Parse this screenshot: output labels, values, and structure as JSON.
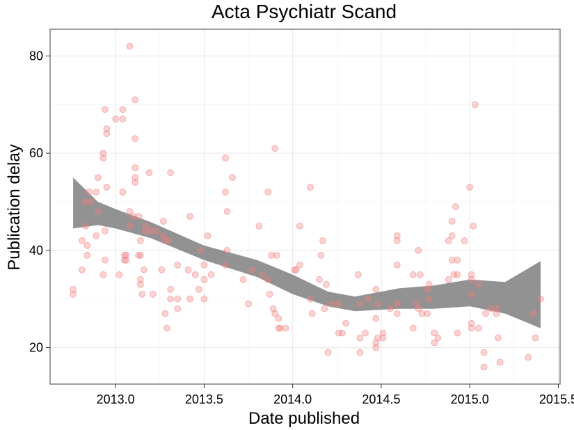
{
  "chart_data": {
    "type": "scatter",
    "title": "Acta Psychiatr Scand",
    "xlabel": "Date published",
    "ylabel": "Publication delay",
    "xlim": [
      2012.63,
      2015.51
    ],
    "ylim": [
      12.5,
      85.5
    ],
    "xticks": [
      2013.0,
      2013.5,
      2014.0,
      2014.5,
      2015.0,
      2015.5
    ],
    "xtick_labels": [
      "2013.0",
      "2013.5",
      "2014.0",
      "2014.5",
      "2015.0",
      "2015.5"
    ],
    "yticks": [
      20,
      40,
      60,
      80
    ],
    "ytick_labels": [
      "20",
      "40",
      "60",
      "80"
    ],
    "grid": true,
    "point_color": "#f08080",
    "band_color": "#7f7f7f",
    "points": [
      [
        2012.76,
        32
      ],
      [
        2012.76,
        31
      ],
      [
        2012.81,
        42
      ],
      [
        2012.81,
        36
      ],
      [
        2012.83,
        50
      ],
      [
        2012.83,
        45
      ],
      [
        2012.84,
        41
      ],
      [
        2012.84,
        39
      ],
      [
        2012.85,
        52
      ],
      [
        2012.86,
        50
      ],
      [
        2012.89,
        52
      ],
      [
        2012.89,
        43
      ],
      [
        2012.9,
        55
      ],
      [
        2012.9,
        48
      ],
      [
        2012.93,
        60
      ],
      [
        2012.93,
        59
      ],
      [
        2012.93,
        35
      ],
      [
        2012.94,
        69
      ],
      [
        2012.94,
        44
      ],
      [
        2012.94,
        38
      ],
      [
        2012.95,
        65
      ],
      [
        2012.95,
        64
      ],
      [
        2012.95,
        53
      ],
      [
        2013.0,
        67
      ],
      [
        2013.02,
        35
      ],
      [
        2013.04,
        69
      ],
      [
        2013.04,
        67
      ],
      [
        2013.04,
        52
      ],
      [
        2013.05,
        39
      ],
      [
        2013.05,
        38
      ],
      [
        2013.06,
        39
      ],
      [
        2013.06,
        38
      ],
      [
        2013.08,
        82
      ],
      [
        2013.08,
        48
      ],
      [
        2013.08,
        45
      ],
      [
        2013.1,
        47
      ],
      [
        2013.11,
        71
      ],
      [
        2013.11,
        63
      ],
      [
        2013.11,
        57
      ],
      [
        2013.11,
        55
      ],
      [
        2013.11,
        54
      ],
      [
        2013.13,
        47
      ],
      [
        2013.13,
        39
      ],
      [
        2013.14,
        42
      ],
      [
        2013.14,
        39
      ],
      [
        2013.14,
        34
      ],
      [
        2013.14,
        33
      ],
      [
        2013.15,
        31
      ],
      [
        2013.16,
        36
      ],
      [
        2013.17,
        45
      ],
      [
        2013.17,
        44
      ],
      [
        2013.19,
        56
      ],
      [
        2013.2,
        44
      ],
      [
        2013.21,
        31
      ],
      [
        2013.23,
        44
      ],
      [
        2013.26,
        36
      ],
      [
        2013.27,
        46
      ],
      [
        2013.27,
        43
      ],
      [
        2013.28,
        42
      ],
      [
        2013.28,
        27
      ],
      [
        2013.29,
        24
      ],
      [
        2013.3,
        42
      ],
      [
        2013.31,
        56
      ],
      [
        2013.31,
        32
      ],
      [
        2013.31,
        30
      ],
      [
        2013.35,
        37
      ],
      [
        2013.35,
        30
      ],
      [
        2013.35,
        28
      ],
      [
        2013.41,
        36
      ],
      [
        2013.42,
        47
      ],
      [
        2013.42,
        30
      ],
      [
        2013.45,
        35
      ],
      [
        2013.47,
        32
      ],
      [
        2013.48,
        40
      ],
      [
        2013.5,
        37
      ],
      [
        2013.5,
        34
      ],
      [
        2013.5,
        30
      ],
      [
        2013.52,
        43
      ],
      [
        2013.54,
        35
      ],
      [
        2013.62,
        59
      ],
      [
        2013.62,
        52
      ],
      [
        2013.62,
        37
      ],
      [
        2013.63,
        48
      ],
      [
        2013.63,
        40
      ],
      [
        2013.66,
        55
      ],
      [
        2013.72,
        34
      ],
      [
        2013.75,
        29
      ],
      [
        2013.77,
        36
      ],
      [
        2013.81,
        45
      ],
      [
        2013.83,
        35
      ],
      [
        2013.86,
        52
      ],
      [
        2013.86,
        34
      ],
      [
        2013.87,
        31
      ],
      [
        2013.88,
        39
      ],
      [
        2013.89,
        28
      ],
      [
        2013.9,
        61
      ],
      [
        2013.9,
        27
      ],
      [
        2013.91,
        39
      ],
      [
        2013.92,
        26
      ],
      [
        2013.92,
        24
      ],
      [
        2013.93,
        24
      ],
      [
        2013.96,
        24
      ],
      [
        2014.01,
        36
      ],
      [
        2014.02,
        36
      ],
      [
        2014.04,
        45
      ],
      [
        2014.04,
        37
      ],
      [
        2014.1,
        53
      ],
      [
        2014.1,
        30
      ],
      [
        2014.11,
        27
      ],
      [
        2014.15,
        34
      ],
      [
        2014.16,
        39
      ],
      [
        2014.17,
        42
      ],
      [
        2014.18,
        28
      ],
      [
        2014.19,
        33
      ],
      [
        2014.2,
        19
      ],
      [
        2014.22,
        29
      ],
      [
        2014.26,
        29
      ],
      [
        2014.26,
        23
      ],
      [
        2014.28,
        23
      ],
      [
        2014.3,
        25
      ],
      [
        2014.37,
        35
      ],
      [
        2014.38,
        29
      ],
      [
        2014.38,
        19
      ],
      [
        2014.38,
        22
      ],
      [
        2014.41,
        23
      ],
      [
        2014.43,
        30
      ],
      [
        2014.47,
        32
      ],
      [
        2014.47,
        26
      ],
      [
        2014.47,
        21
      ],
      [
        2014.47,
        20
      ],
      [
        2014.48,
        29
      ],
      [
        2014.48,
        22
      ],
      [
        2014.51,
        23
      ],
      [
        2014.51,
        22
      ],
      [
        2014.55,
        28
      ],
      [
        2014.59,
        43
      ],
      [
        2014.59,
        42
      ],
      [
        2014.59,
        37
      ],
      [
        2014.59,
        29
      ],
      [
        2014.59,
        27
      ],
      [
        2014.68,
        35
      ],
      [
        2014.68,
        24
      ],
      [
        2014.7,
        29
      ],
      [
        2014.71,
        40
      ],
      [
        2014.71,
        28
      ],
      [
        2014.72,
        35
      ],
      [
        2014.73,
        27
      ],
      [
        2014.76,
        27
      ],
      [
        2014.76,
        32
      ],
      [
        2014.77,
        33
      ],
      [
        2014.77,
        30
      ],
      [
        2014.8,
        23
      ],
      [
        2014.8,
        21
      ],
      [
        2014.82,
        22
      ],
      [
        2014.88,
        42
      ],
      [
        2014.88,
        34
      ],
      [
        2014.9,
        46
      ],
      [
        2014.9,
        43
      ],
      [
        2014.9,
        38
      ],
      [
        2014.91,
        35
      ],
      [
        2014.92,
        49
      ],
      [
        2014.93,
        38
      ],
      [
        2014.93,
        35
      ],
      [
        2014.93,
        23
      ],
      [
        2014.97,
        42
      ],
      [
        2015.0,
        53
      ],
      [
        2015.01,
        35
      ],
      [
        2015.01,
        34
      ],
      [
        2015.01,
        31
      ],
      [
        2015.01,
        25
      ],
      [
        2015.01,
        24
      ],
      [
        2015.02,
        45
      ],
      [
        2015.03,
        70
      ],
      [
        2015.05,
        33
      ],
      [
        2015.05,
        24
      ],
      [
        2015.08,
        19
      ],
      [
        2015.08,
        16
      ],
      [
        2015.09,
        27
      ],
      [
        2015.12,
        28
      ],
      [
        2015.15,
        28
      ],
      [
        2015.15,
        27
      ],
      [
        2015.16,
        22
      ],
      [
        2015.17,
        17
      ],
      [
        2015.33,
        18
      ],
      [
        2015.36,
        27
      ],
      [
        2015.37,
        22
      ],
      [
        2015.4,
        30
      ]
    ],
    "smooth_x": [
      2012.76,
      2012.9,
      2013.0,
      2013.2,
      2013.5,
      2013.8,
      2014.0,
      2014.2,
      2014.35,
      2014.6,
      2014.8,
      2015.0,
      2015.2,
      2015.4
    ],
    "smooth_lower": [
      44.5,
      45.2,
      44.5,
      42.5,
      38.0,
      34.5,
      31.0,
      28.5,
      27.5,
      28.0,
      28.0,
      28.5,
      27.0,
      24.0
    ],
    "smooth_upper": [
      55.0,
      50.0,
      48.5,
      45.8,
      41.0,
      38.0,
      35.0,
      31.5,
      30.5,
      32.2,
      32.8,
      34.0,
      33.5,
      37.8
    ]
  }
}
